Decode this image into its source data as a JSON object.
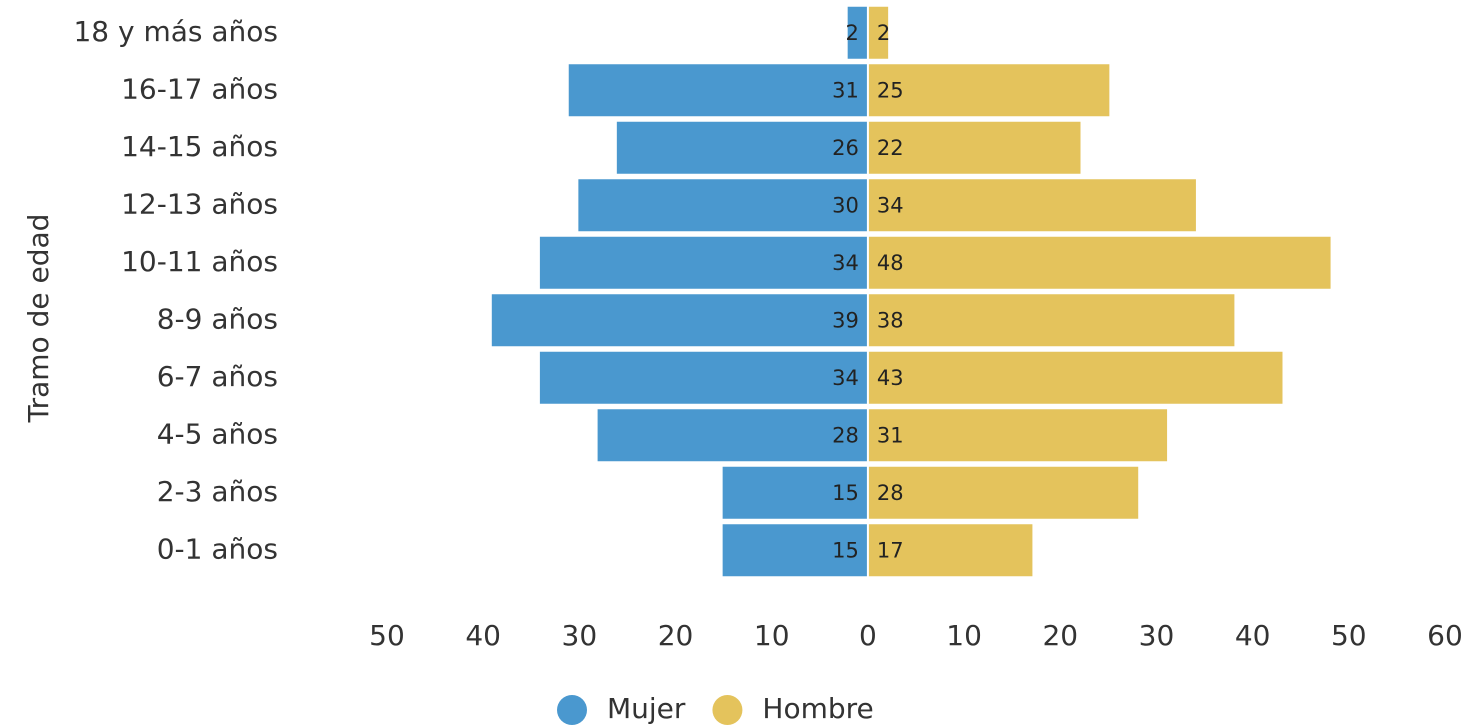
{
  "chart_data": {
    "type": "pyramid",
    "y_label": "Tramo de edad",
    "categories": [
      "18 y más años",
      "16-17 años",
      "14-15 años",
      "12-13 años",
      "10-11 años",
      "8-9 años",
      "6-7 años",
      "4-5 años",
      "2-3 años",
      "0-1 años"
    ],
    "series": [
      {
        "name": "Mujer",
        "color": "#4a98cf",
        "side": "left",
        "values": [
          2,
          31,
          26,
          30,
          34,
          39,
          34,
          28,
          15,
          15
        ]
      },
      {
        "name": "Hombre",
        "color": "#e4c35c",
        "side": "right",
        "values": [
          2,
          25,
          22,
          34,
          48,
          38,
          43,
          31,
          28,
          17
        ]
      }
    ],
    "xlim": [
      -50,
      60
    ],
    "xticks": [
      {
        "value": -50,
        "label": "50"
      },
      {
        "value": -40,
        "label": "40"
      },
      {
        "value": -30,
        "label": "30"
      },
      {
        "value": -20,
        "label": "20"
      },
      {
        "value": -10,
        "label": "10"
      },
      0,
      10,
      20,
      30,
      40,
      50,
      60
    ],
    "legend": "bottom"
  }
}
